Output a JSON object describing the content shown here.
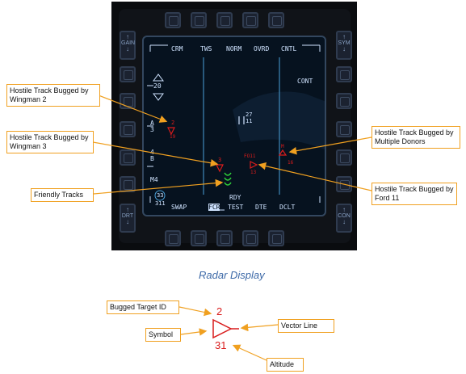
{
  "screen": {
    "top_labels": [
      "CRM",
      "TWS",
      "NORM",
      "OVRD",
      "CNTL"
    ],
    "bottom_labels": [
      "SWAP",
      "FCR",
      "TEST",
      "DTE",
      "DCLT"
    ],
    "rdy": "RDY",
    "cont": "CONT",
    "alt_scale": "20",
    "left_a": "A",
    "left_a_num": "3",
    "left_b_num": "4",
    "left_b": "B",
    "m4": "M4",
    "range_top": "33",
    "range_bottom": "311",
    "cursor_top": "27",
    "cursor_bottom": "11",
    "track_w2_id": "2",
    "track_w2_alt": "19",
    "track_w3_id": "3",
    "track_ford_id": "FO11",
    "track_ford_alt": "13",
    "track_multi_id": "M",
    "track_multi_alt": "16",
    "rocker_left_top": "GAIN",
    "rocker_left_bottom": "DRT",
    "rocker_right_top": "SYM",
    "rocker_right_bottom": "CON"
  },
  "callouts": {
    "wingman2": "Hostile Track Bugged by Wingman 2",
    "wingman3": "Hostile Track Bugged by Wingman 3",
    "friendly": "Friendly Tracks",
    "multi": "Hostile Track Bugged by Multiple Donors",
    "ford": "Hostile Track Bugged by Ford 11"
  },
  "caption": "Radar Display",
  "legend": {
    "bugged_id_label": "Bugged Target ID",
    "symbol_label": "Symbol",
    "vector_label": "Vector Line",
    "altitude_label": "Altitude",
    "example_id": "2",
    "example_alt": "31"
  },
  "colors": {
    "callout_border": "#f0a020",
    "hostile": "#d91c1c",
    "friendly": "#2fd43a",
    "screen_text": "#cfe3ff",
    "caption": "#3e6aa8"
  }
}
